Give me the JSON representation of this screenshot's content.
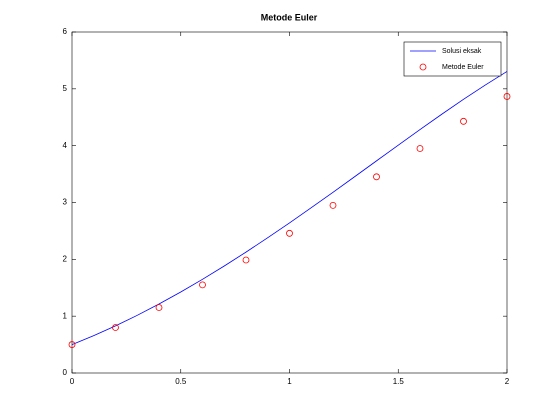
{
  "chart_data": {
    "type": "line",
    "title": "Metode Euler",
    "series": [
      {
        "name": "Solusi eksak",
        "color": "#0000ff",
        "marker": "none",
        "x": [
          0,
          0.1,
          0.2,
          0.3,
          0.4,
          0.5,
          0.6,
          0.7,
          0.8,
          0.9,
          1,
          1.1,
          1.2,
          1.3,
          1.4,
          1.5,
          1.6,
          1.7,
          1.8,
          1.9,
          2
        ],
        "values": [
          0.5,
          0.6574,
          0.8293,
          1.0151,
          1.2141,
          1.4256,
          1.6489,
          1.8831,
          2.1272,
          2.3802,
          2.6409,
          2.9079,
          3.1799,
          3.4554,
          3.7324,
          4.0092,
          4.2835,
          4.553,
          4.8152,
          5.067,
          5.3055
        ]
      },
      {
        "name": "Metode Euler",
        "color": "#ff0000",
        "marker": "circle",
        "x": [
          0,
          0.2,
          0.4,
          0.6,
          0.8,
          1,
          1.2,
          1.4,
          1.6,
          1.8,
          2
        ],
        "values": [
          0.5,
          0.8,
          1.152,
          1.5504,
          1.9885,
          2.4582,
          2.9498,
          3.4518,
          3.9501,
          4.4282,
          4.8658
        ]
      }
    ],
    "xlim": [
      0,
      2
    ],
    "xticks": [
      0,
      0.5,
      1,
      1.5,
      2
    ],
    "ylim": [
      0,
      6
    ],
    "yticks": [
      0,
      1,
      2,
      3,
      4,
      5,
      6
    ],
    "legend": "northeast"
  }
}
